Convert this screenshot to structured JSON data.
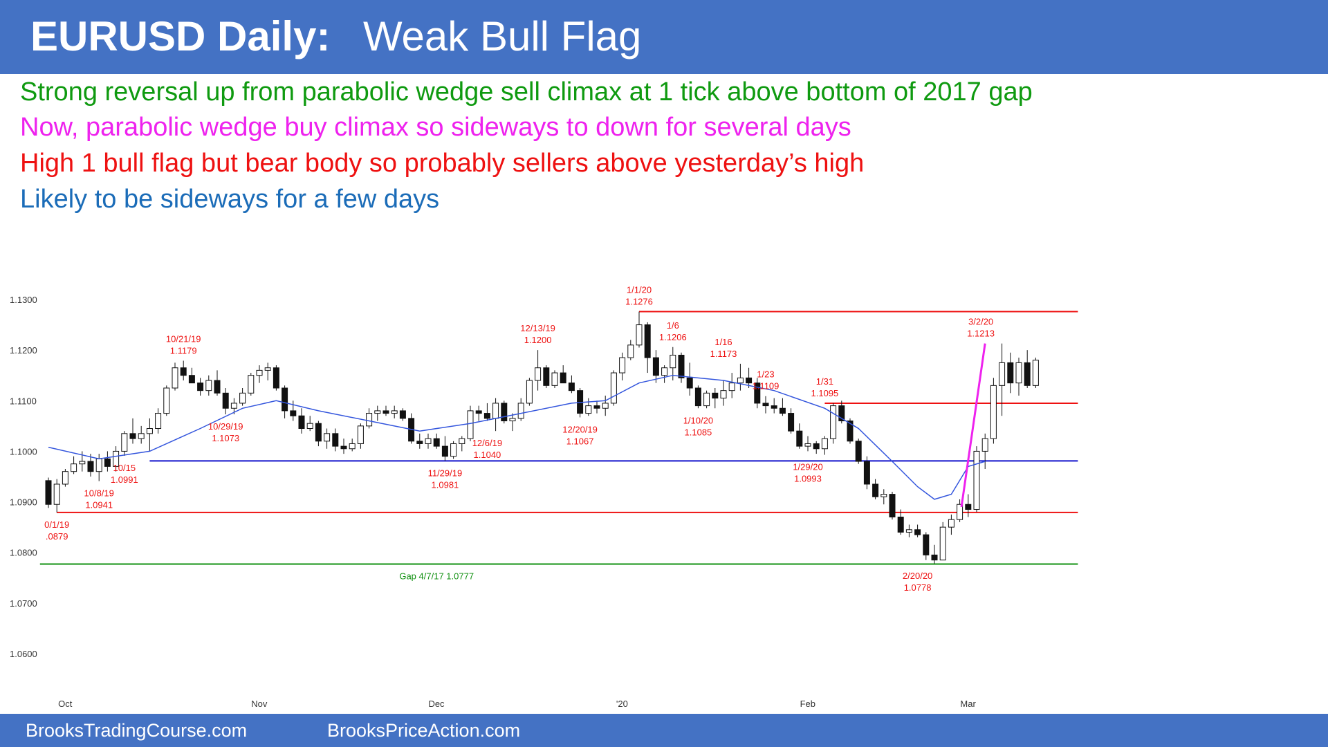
{
  "header": {
    "title_bold": "EURUSD Daily:",
    "title_rest": "Weak Bull Flag",
    "color": "#4472c4"
  },
  "notes": [
    {
      "text": "Strong reversal up from parabolic wedge sell climax at 1 tick above bottom of 2017 gap",
      "color": "#0f9a10"
    },
    {
      "text": "Now, parabolic wedge buy climax so sideways to down for several days",
      "color": "#ee22ee"
    },
    {
      "text": "High 1 bull flag but bear body so probably sellers above yesterday’s high",
      "color": "#ee1111"
    },
    {
      "text": "Likely to be sideways for a few days",
      "color": "#1b6cb8"
    }
  ],
  "footer": {
    "left": "BrooksTradingCourse.com",
    "right": "BrooksPriceAction.com"
  },
  "chart_data": {
    "type": "candlestick",
    "ylim": [
      1.06,
      1.13
    ],
    "yticks": [
      "1.1300",
      "1.1200",
      "1.1100",
      "1.1000",
      "1.0900",
      "1.0800",
      "1.0700",
      "1.0600"
    ],
    "ytick_values": [
      1.13,
      1.12,
      1.11,
      1.1,
      1.09,
      1.08,
      1.07,
      1.06
    ],
    "xticks": [
      {
        "label": "Oct",
        "bar": 1
      },
      {
        "label": "Nov",
        "bar": 24
      },
      {
        "label": "Dec",
        "bar": 45
      },
      {
        "label": "'20",
        "bar": 67
      },
      {
        "label": "Feb",
        "bar": 89
      },
      {
        "label": "Mar",
        "bar": 108
      }
    ],
    "n_bars": 112,
    "ohlc": [
      [
        1.0942,
        1.0948,
        1.0888,
        1.0895
      ],
      [
        1.0895,
        1.0945,
        1.0879,
        1.0935
      ],
      [
        1.0935,
        1.0965,
        1.093,
        1.096
      ],
      [
        1.096,
        1.099,
        1.0955,
        1.0975
      ],
      [
        1.0975,
        1.1,
        1.096,
        1.098
      ],
      [
        1.098,
        1.0995,
        1.095,
        1.096
      ],
      [
        1.096,
        1.0995,
        1.0941,
        1.0985
      ],
      [
        1.0985,
        1.1,
        1.096,
        1.097
      ],
      [
        1.097,
        1.101,
        1.096,
        1.1
      ],
      [
        1.1,
        1.104,
        1.0991,
        1.1035
      ],
      [
        1.1035,
        1.1065,
        1.1015,
        1.1025
      ],
      [
        1.1025,
        1.105,
        1.1015,
        1.1035
      ],
      [
        1.1035,
        1.1065,
        1.1,
        1.1045
      ],
      [
        1.1045,
        1.1085,
        1.1035,
        1.1075
      ],
      [
        1.1075,
        1.113,
        1.107,
        1.1125
      ],
      [
        1.1125,
        1.1175,
        1.112,
        1.1165
      ],
      [
        1.1165,
        1.1179,
        1.114,
        1.115
      ],
      [
        1.115,
        1.1165,
        1.1135,
        1.1135
      ],
      [
        1.1135,
        1.1145,
        1.111,
        1.112
      ],
      [
        1.112,
        1.115,
        1.111,
        1.114
      ],
      [
        1.114,
        1.116,
        1.111,
        1.1115
      ],
      [
        1.1115,
        1.1125,
        1.1073,
        1.1085
      ],
      [
        1.1085,
        1.1105,
        1.1073,
        1.1095
      ],
      [
        1.1095,
        1.1125,
        1.109,
        1.1115
      ],
      [
        1.1115,
        1.1155,
        1.111,
        1.115
      ],
      [
        1.115,
        1.117,
        1.1135,
        1.116
      ],
      [
        1.116,
        1.1175,
        1.114,
        1.1165
      ],
      [
        1.1165,
        1.117,
        1.112,
        1.1125
      ],
      [
        1.1125,
        1.113,
        1.1065,
        1.108
      ],
      [
        1.108,
        1.11,
        1.106,
        1.107
      ],
      [
        1.107,
        1.1085,
        1.1035,
        1.1045
      ],
      [
        1.1045,
        1.107,
        1.104,
        1.1055
      ],
      [
        1.1055,
        1.106,
        1.101,
        1.102
      ],
      [
        1.102,
        1.1045,
        1.1005,
        1.1035
      ],
      [
        1.1035,
        1.1045,
        1.1,
        1.101
      ],
      [
        1.101,
        1.1025,
        1.0995,
        1.1005
      ],
      [
        1.1005,
        1.1025,
        1.1,
        1.1015
      ],
      [
        1.1015,
        1.1055,
        1.1005,
        1.105
      ],
      [
        1.105,
        1.1085,
        1.1045,
        1.1075
      ],
      [
        1.1075,
        1.109,
        1.106,
        1.108
      ],
      [
        1.108,
        1.109,
        1.107,
        1.1075
      ],
      [
        1.1075,
        1.109,
        1.1065,
        1.108
      ],
      [
        1.108,
        1.1085,
        1.106,
        1.1065
      ],
      [
        1.1065,
        1.1075,
        1.1015,
        1.102
      ],
      [
        1.102,
        1.1035,
        1.1005,
        1.1015
      ],
      [
        1.1015,
        1.1035,
        1.1005,
        1.1025
      ],
      [
        1.1025,
        1.1035,
        1.1005,
        1.101
      ],
      [
        1.101,
        1.103,
        1.0981,
        1.099
      ],
      [
        1.099,
        1.102,
        1.0985,
        1.1015
      ],
      [
        1.1015,
        1.103,
        1.1,
        1.1025
      ],
      [
        1.1025,
        1.109,
        1.102,
        1.108
      ],
      [
        1.108,
        1.109,
        1.106,
        1.1075
      ],
      [
        1.1075,
        1.1095,
        1.106,
        1.1065
      ],
      [
        1.1065,
        1.1105,
        1.104,
        1.1095
      ],
      [
        1.1095,
        1.11,
        1.1055,
        1.106
      ],
      [
        1.106,
        1.1075,
        1.104,
        1.1065
      ],
      [
        1.1065,
        1.1105,
        1.106,
        1.1095
      ],
      [
        1.1095,
        1.1145,
        1.109,
        1.114
      ],
      [
        1.114,
        1.12,
        1.112,
        1.1165
      ],
      [
        1.1165,
        1.117,
        1.1125,
        1.113
      ],
      [
        1.113,
        1.116,
        1.1125,
        1.1155
      ],
      [
        1.1155,
        1.117,
        1.114,
        1.1135
      ],
      [
        1.1135,
        1.115,
        1.1115,
        1.112
      ],
      [
        1.112,
        1.1125,
        1.1067,
        1.1075
      ],
      [
        1.1075,
        1.1105,
        1.107,
        1.109
      ],
      [
        1.109,
        1.11,
        1.1075,
        1.1085
      ],
      [
        1.1085,
        1.111,
        1.107,
        1.1095
      ],
      [
        1.1095,
        1.116,
        1.109,
        1.1155
      ],
      [
        1.1155,
        1.1195,
        1.114,
        1.1185
      ],
      [
        1.1185,
        1.122,
        1.118,
        1.121
      ],
      [
        1.121,
        1.1276,
        1.1205,
        1.125
      ],
      [
        1.125,
        1.1255,
        1.1155,
        1.1185
      ],
      [
        1.1185,
        1.12,
        1.1135,
        1.115
      ],
      [
        1.115,
        1.117,
        1.1135,
        1.1165
      ],
      [
        1.1165,
        1.1206,
        1.114,
        1.119
      ],
      [
        1.119,
        1.1195,
        1.1135,
        1.1145
      ],
      [
        1.1145,
        1.1175,
        1.111,
        1.1125
      ],
      [
        1.1125,
        1.113,
        1.1085,
        1.109
      ],
      [
        1.109,
        1.112,
        1.1085,
        1.1115
      ],
      [
        1.1115,
        1.1125,
        1.1085,
        1.1105
      ],
      [
        1.1105,
        1.114,
        1.109,
        1.112
      ],
      [
        1.112,
        1.1155,
        1.1105,
        1.1135
      ],
      [
        1.1135,
        1.1173,
        1.112,
        1.1145
      ],
      [
        1.1145,
        1.1165,
        1.1125,
        1.1135
      ],
      [
        1.1135,
        1.1145,
        1.1085,
        1.1095
      ],
      [
        1.1095,
        1.1109,
        1.1075,
        1.109
      ],
      [
        1.109,
        1.1105,
        1.1075,
        1.1085
      ],
      [
        1.1085,
        1.1105,
        1.107,
        1.1075
      ],
      [
        1.1075,
        1.1085,
        1.1035,
        1.104
      ],
      [
        1.104,
        1.1055,
        1.1005,
        1.101
      ],
      [
        1.101,
        1.103,
        1.1,
        1.1015
      ],
      [
        1.1015,
        1.102,
        1.0995,
        1.1005
      ],
      [
        1.1005,
        1.103,
        1.0993,
        1.1025
      ],
      [
        1.1025,
        1.1095,
        1.1015,
        1.109
      ],
      [
        1.109,
        1.11,
        1.1055,
        1.106
      ],
      [
        1.106,
        1.1065,
        1.1015,
        1.102
      ],
      [
        1.102,
        1.1025,
        1.0975,
        1.098
      ],
      [
        1.098,
        1.099,
        1.0925,
        1.0935
      ],
      [
        1.0935,
        1.0945,
        1.0905,
        1.091
      ],
      [
        1.091,
        1.0925,
        1.0895,
        1.0915
      ],
      [
        1.0915,
        1.092,
        1.0865,
        1.087
      ],
      [
        1.087,
        1.0885,
        1.0835,
        1.084
      ],
      [
        1.084,
        1.0855,
        1.083,
        1.0845
      ],
      [
        1.0845,
        1.0855,
        1.083,
        1.0835
      ],
      [
        1.0835,
        1.084,
        1.0785,
        1.0795
      ],
      [
        1.0795,
        1.0815,
        1.0778,
        1.0785
      ],
      [
        1.0785,
        1.086,
        1.0785,
        1.085
      ],
      [
        1.085,
        1.0875,
        1.0835,
        1.0865
      ],
      [
        1.0865,
        1.0905,
        1.086,
        1.0895
      ],
      [
        1.0895,
        1.0915,
        1.087,
        1.0885
      ],
      [
        1.0885,
        1.101,
        1.088,
        1.1
      ],
      [
        1.1,
        1.1035,
        1.0965,
        1.1025
      ],
      [
        1.1025,
        1.1145,
        1.1015,
        1.113
      ],
      [
        1.113,
        1.1213,
        1.107,
        1.1175
      ],
      [
        1.1175,
        1.1195,
        1.1115,
        1.1135
      ],
      [
        1.1135,
        1.1185,
        1.111,
        1.1175
      ],
      [
        1.1175,
        1.12,
        1.1125,
        1.113
      ],
      [
        1.113,
        1.1185,
        1.1125,
        1.118
      ]
    ],
    "ema": [
      [
        0,
        1.1008
      ],
      [
        6,
        1.0985
      ],
      [
        12,
        1.1
      ],
      [
        18,
        1.1045
      ],
      [
        23,
        1.1085
      ],
      [
        27,
        1.11
      ],
      [
        32,
        1.108
      ],
      [
        38,
        1.106
      ],
      [
        44,
        1.104
      ],
      [
        50,
        1.1055
      ],
      [
        56,
        1.1075
      ],
      [
        62,
        1.1095
      ],
      [
        66,
        1.11
      ],
      [
        70,
        1.1135
      ],
      [
        74,
        1.115
      ],
      [
        80,
        1.114
      ],
      [
        86,
        1.112
      ],
      [
        92,
        1.1085
      ],
      [
        96,
        1.1045
      ],
      [
        100,
        1.098
      ],
      [
        103,
        1.093
      ],
      [
        105,
        1.0905
      ],
      [
        107,
        1.0915
      ],
      [
        109,
        1.097
      ],
      [
        111,
        1.098
      ]
    ],
    "lines": [
      {
        "y": 1.1276,
        "x0": 70,
        "x1": 122,
        "color": "#ee1111"
      },
      {
        "y": 1.1095,
        "x0": 92,
        "x1": 122,
        "color": "#ee1111"
      },
      {
        "y": 1.0981,
        "x0": 12,
        "x1": 122,
        "color": "#1111cc"
      },
      {
        "y": 1.0879,
        "x0": 1,
        "x1": 122,
        "color": "#ee1111"
      },
      {
        "y": 1.0777,
        "x0": -1,
        "x1": 122,
        "color": "#109010"
      }
    ],
    "wedge": {
      "points": [
        [
          108.2,
          1.089
        ],
        [
          111,
          1.1213
        ]
      ],
      "color": "#ee22ee"
    },
    "annotations": [
      {
        "lines": [
          "10/21/19",
          "1.1179"
        ],
        "bar": 16,
        "y": 1.1179,
        "pos": "above",
        "color": "#ee1111"
      },
      {
        "lines": [
          "10/29/19",
          "1.1073"
        ],
        "bar": 21,
        "y": 1.1073,
        "pos": "below",
        "color": "#ee1111"
      },
      {
        "lines": [
          "10/15",
          "1.0991"
        ],
        "bar": 9,
        "y": 1.0991,
        "pos": "below",
        "color": "#ee1111"
      },
      {
        "lines": [
          "10/8/19",
          "1.0941"
        ],
        "bar": 6,
        "y": 1.0941,
        "pos": "below",
        "color": "#ee1111"
      },
      {
        "lines": [
          "0/1/19",
          ".0879"
        ],
        "bar": 1,
        "y": 1.0879,
        "pos": "below",
        "color": "#ee1111"
      },
      {
        "lines": [
          "11/29/19",
          "1.0981"
        ],
        "bar": 47,
        "y": 1.0981,
        "pos": "below",
        "color": "#ee1111"
      },
      {
        "lines": [
          "12/6/19",
          "1.1040"
        ],
        "bar": 52,
        "y": 1.104,
        "pos": "below",
        "color": "#ee1111"
      },
      {
        "lines": [
          "12/13/19",
          "1.1200"
        ],
        "bar": 58,
        "y": 1.12,
        "pos": "above",
        "color": "#ee1111"
      },
      {
        "lines": [
          "12/20/19",
          "1.1067"
        ],
        "bar": 63,
        "y": 1.1067,
        "pos": "below",
        "color": "#ee1111"
      },
      {
        "lines": [
          "1/1/20",
          "1.1276"
        ],
        "bar": 70,
        "y": 1.1276,
        "pos": "above",
        "color": "#ee1111"
      },
      {
        "lines": [
          "1/6",
          "1.1206"
        ],
        "bar": 74,
        "y": 1.1206,
        "pos": "above",
        "color": "#ee1111"
      },
      {
        "lines": [
          "1/16",
          "1.1173"
        ],
        "bar": 80,
        "y": 1.1173,
        "pos": "above",
        "color": "#ee1111"
      },
      {
        "lines": [
          "1/10/20",
          "1.1085"
        ],
        "bar": 77,
        "y": 1.1085,
        "pos": "below",
        "color": "#ee1111"
      },
      {
        "lines": [
          "1/23",
          "1.1109"
        ],
        "bar": 85,
        "y": 1.1109,
        "pos": "above",
        "color": "#ee1111"
      },
      {
        "lines": [
          "1/31",
          "1.1095"
        ],
        "bar": 92,
        "y": 1.1095,
        "pos": "above",
        "color": "#ee1111"
      },
      {
        "lines": [
          "1/29/20",
          "1.0993"
        ],
        "bar": 90,
        "y": 1.0993,
        "pos": "below",
        "color": "#ee1111"
      },
      {
        "lines": [
          "3/2/20",
          "1.1213"
        ],
        "bar": 110.5,
        "y": 1.1213,
        "pos": "above",
        "color": "#ee1111"
      },
      {
        "lines": [
          "2/20/20",
          "1.0778"
        ],
        "bar": 103,
        "y": 1.0778,
        "pos": "below",
        "color": "#ee1111"
      },
      {
        "lines": [
          "Gap 4/7/17 1.0777"
        ],
        "bar": 46,
        "y": 1.0777,
        "pos": "below",
        "color": "#109010"
      }
    ],
    "colors": {
      "bull": "#ffffff",
      "bear": "#111111",
      "ema": "#3355dd"
    }
  }
}
